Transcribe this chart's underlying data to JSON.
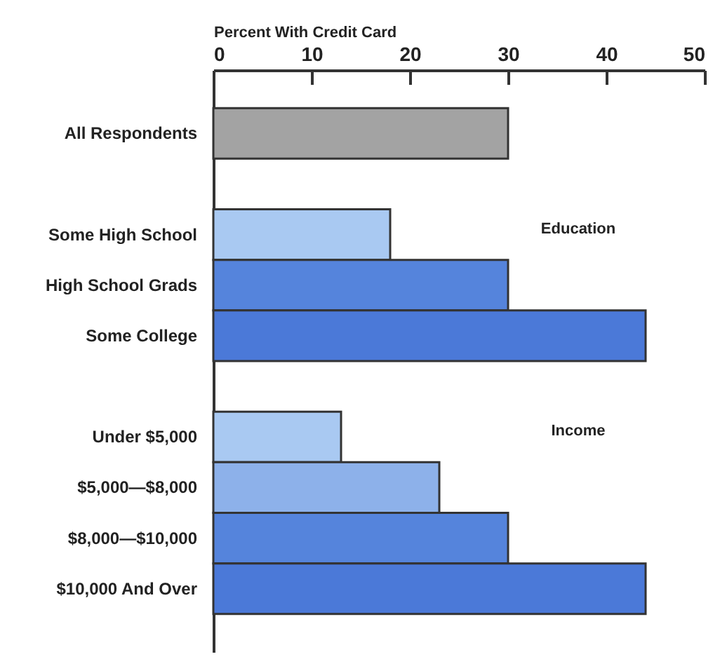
{
  "chart_data": {
    "type": "bar",
    "orientation": "horizontal",
    "xlabel": "Percent With Credit Card",
    "categories": [
      "All Respondents",
      null,
      "Some High School",
      "High School Grads",
      "Some College",
      null,
      "Under $5,000",
      "$5,000—$8,000",
      "$8,000—$10,000",
      "$10,000 And Over"
    ],
    "values": [
      30,
      null,
      18,
      30,
      44,
      null,
      13,
      23,
      30,
      44
    ],
    "colors": [
      "#a3a3a3",
      null,
      "#a9c9f2",
      "#5584dc",
      "#4b79d8",
      null,
      "#a9c9f2",
      "#8db1ea",
      "#5584dc",
      "#4b79d8"
    ],
    "xlim": [
      0,
      50
    ],
    "xticks": [
      0,
      10,
      20,
      30,
      40,
      50
    ],
    "annotations": [
      "Education",
      "Income"
    ],
    "grid": false
  }
}
